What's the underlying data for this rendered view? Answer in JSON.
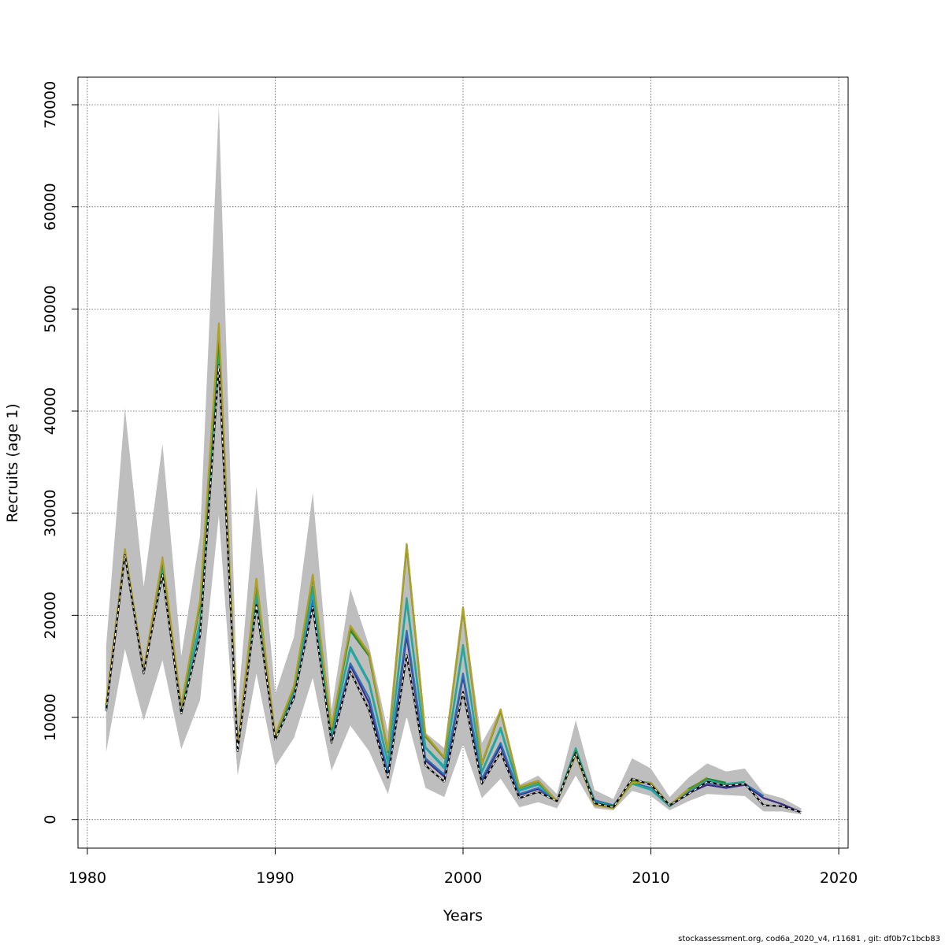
{
  "chart_data": {
    "type": "line",
    "title": "",
    "xlabel": "Years",
    "ylabel": "Recruits (age 1)",
    "xlim": [
      1979.5,
      2020.5
    ],
    "ylim": [
      -2800,
      72700
    ],
    "x_ticks": [
      1980,
      1990,
      2000,
      2010,
      2020
    ],
    "y_ticks": [
      0,
      10000,
      20000,
      30000,
      40000,
      50000,
      60000,
      70000
    ],
    "grid": true,
    "legend": "none",
    "band": {
      "x": [
        1981,
        1982,
        1983,
        1984,
        1985,
        1986,
        1987,
        1988,
        1989,
        1990,
        1991,
        1992,
        1993,
        1994,
        1995,
        1996,
        1997,
        1998,
        1999,
        2000,
        2001,
        2002,
        2003,
        2004,
        2005,
        2006,
        2007,
        2008,
        2009,
        2010,
        2011,
        2012,
        2013,
        2014,
        2015,
        2016,
        2017,
        2018
      ],
      "upper": [
        17000,
        40300,
        22800,
        36800,
        16000,
        27800,
        69800,
        10800,
        32600,
        12300,
        17900,
        32000,
        10800,
        22600,
        17000,
        8600,
        26900,
        8500,
        7000,
        20900,
        7500,
        10800,
        3400,
        4300,
        2500,
        9700,
        2900,
        2000,
        6000,
        5000,
        2200,
        4100,
        5500,
        4700,
        5000,
        2600,
        2100,
        1100
      ],
      "lower": [
        6600,
        16700,
        9700,
        15600,
        6900,
        11700,
        29800,
        4300,
        14300,
        5200,
        8000,
        13900,
        4800,
        9200,
        6700,
        2500,
        10100,
        3100,
        2200,
        7400,
        2100,
        4000,
        1200,
        1700,
        1100,
        4300,
        1100,
        900,
        2800,
        2300,
        900,
        1800,
        2500,
        2400,
        2300,
        800,
        800,
        500
      ]
    },
    "series": [
      {
        "color": "#000000",
        "dashed_overlay": true,
        "x": [
          1981,
          1982,
          1983,
          1984,
          1985,
          1986,
          1987,
          1988,
          1989,
          1990,
          1991,
          1992,
          1993,
          1994,
          1995,
          1996,
          1997,
          1998,
          1999,
          2000,
          2001,
          2002,
          2003,
          2004,
          2005,
          2006,
          2007,
          2008,
          2009,
          2010,
          2011,
          2012,
          2013,
          2014,
          2015,
          2016,
          2017,
          2018
        ],
        "values": [
          10600,
          25900,
          14300,
          24000,
          10400,
          18000,
          44500,
          6700,
          21000,
          7800,
          11900,
          20800,
          7500,
          14500,
          10700,
          4100,
          16100,
          5300,
          3700,
          12500,
          3500,
          6600,
          2100,
          2700,
          1800,
          6500,
          1600,
          1200,
          4000,
          3400,
          1400,
          2500,
          3700,
          3300,
          3500,
          1400,
          1300,
          700
        ]
      },
      {
        "color": "#3b2a85",
        "x": [
          1981,
          1982,
          1983,
          1984,
          1985,
          1986,
          1987,
          1988,
          1989,
          1990,
          1991,
          1992,
          1993,
          1994,
          1995,
          1996,
          1997,
          1998,
          1999,
          2000,
          2001,
          2002,
          2003,
          2004,
          2005,
          2006,
          2007,
          2008,
          2009,
          2010,
          2011,
          2012,
          2013,
          2014,
          2015,
          2016,
          2017,
          2018
        ],
        "values": [
          10700,
          26000,
          14400,
          24100,
          10500,
          18300,
          45000,
          6800,
          21300,
          7900,
          12000,
          21200,
          7700,
          15100,
          11400,
          4500,
          18000,
          5800,
          4200,
          14000,
          3800,
          7200,
          2400,
          3000,
          1800,
          6700,
          1800,
          1300,
          3700,
          3000,
          1300,
          2600,
          3400,
          3100,
          3400,
          2100,
          1500,
          700
        ]
      },
      {
        "color": "#2d6fb5",
        "x": [
          1981,
          1982,
          1983,
          1984,
          1985,
          1986,
          1987,
          1988,
          1989,
          1990,
          1991,
          1992,
          1993,
          1994,
          1995,
          1996,
          1997,
          1998,
          1999,
          2000,
          2001,
          2002,
          2003,
          2004,
          2005,
          2006,
          2007,
          2008,
          2009,
          2010,
          2011,
          2012,
          2013,
          2014,
          2015,
          2016
        ],
        "values": [
          10800,
          26100,
          14400,
          24200,
          10400,
          18600,
          45400,
          6800,
          21500,
          8000,
          12200,
          21500,
          7800,
          15300,
          11900,
          4700,
          18500,
          6000,
          4400,
          14300,
          4000,
          7500,
          2500,
          3100,
          1800,
          6800,
          1900,
          1400,
          3600,
          3100,
          1300,
          2800,
          3600,
          3300,
          3500,
          2300
        ]
      },
      {
        "color": "#22a7c4",
        "x": [
          1981,
          1982,
          1983,
          1984,
          1985,
          1986,
          1987,
          1988,
          1989,
          1990,
          1991,
          1992,
          1993,
          1994,
          1995,
          1996,
          1997,
          1998,
          1999,
          2000,
          2001,
          2002,
          2003,
          2004,
          2005,
          2006,
          2007,
          2008,
          2009,
          2010,
          2011,
          2012,
          2013,
          2014
        ],
        "values": [
          10900,
          26100,
          14500,
          24400,
          10600,
          19000,
          46000,
          6900,
          22000,
          8000,
          12600,
          22200,
          8300,
          16700,
          13300,
          5500,
          21300,
          7000,
          5000,
          16800,
          4600,
          8800,
          2800,
          3400,
          1800,
          7000,
          1700,
          1300,
          3500,
          2900,
          1300,
          2800,
          3800,
          3500
        ]
      },
      {
        "color": "#2aa58f",
        "x": [
          1981,
          1982,
          1983,
          1984,
          1985,
          1986,
          1987,
          1988,
          1989,
          1990,
          1991,
          1992,
          1993,
          1994,
          1995,
          1996,
          1997,
          1998,
          1999,
          2000,
          2001,
          2002,
          2003,
          2004,
          2005,
          2006,
          2007,
          2008,
          2009,
          2010,
          2011,
          2012,
          2013,
          2014,
          2015
        ],
        "values": [
          11000,
          26200,
          14500,
          24600,
          10700,
          19500,
          46500,
          7000,
          22400,
          8100,
          12700,
          22800,
          8400,
          16900,
          13500,
          5700,
          21700,
          7100,
          5200,
          17100,
          4700,
          9000,
          2900,
          3500,
          1800,
          6900,
          1700,
          1300,
          3500,
          3000,
          1300,
          2900,
          3700,
          3500,
          3700
        ]
      },
      {
        "color": "#1a8a3a",
        "x": [
          1981,
          1982,
          1983,
          1984,
          1985,
          1986,
          1987,
          1988,
          1989,
          1990,
          1991,
          1992,
          1993,
          1994,
          1995,
          1996,
          1997,
          1998,
          1999,
          2000,
          2001,
          2002,
          2003,
          2004,
          2005,
          2006,
          2007,
          2008,
          2009,
          2010,
          2011,
          2012,
          2013,
          2014
        ],
        "values": [
          11200,
          26300,
          14500,
          25300,
          11000,
          21000,
          47300,
          7100,
          23500,
          8100,
          12900,
          23900,
          8800,
          18500,
          16000,
          6600,
          26900,
          8200,
          6100,
          20700,
          5500,
          10700,
          3200,
          3800,
          1800,
          6700,
          1600,
          1300,
          3700,
          3600,
          1400,
          3000,
          4000,
          3600
        ]
      },
      {
        "color": "#6f8f1a",
        "x": [
          1981,
          1982,
          1983,
          1984,
          1985,
          1986,
          1987,
          1988,
          1989,
          1990,
          1991,
          1992,
          1993,
          1994,
          1995,
          1996,
          1997,
          1998,
          1999,
          2000,
          2001,
          2002,
          2003,
          2004,
          2005,
          2006,
          2007,
          2008,
          2009,
          2010,
          2011,
          2012,
          2013
        ],
        "values": [
          11300,
          26400,
          14600,
          25500,
          11100,
          21200,
          48300,
          7200,
          23300,
          8200,
          13000,
          23700,
          9000,
          18800,
          16100,
          6700,
          26700,
          8100,
          6000,
          20500,
          5400,
          10600,
          3100,
          3700,
          1800,
          6400,
          1500,
          1200,
          3800,
          3500,
          1400,
          2900,
          4100
        ]
      },
      {
        "color": "#b0a02a",
        "x": [
          1981,
          1982,
          1983,
          1984,
          1985,
          1986,
          1987,
          1988,
          1989,
          1990,
          1991,
          1992,
          1993,
          1994,
          1995,
          1996,
          1997,
          1998,
          1999,
          2000,
          2001,
          2002,
          2003,
          2004,
          2005,
          2006,
          2007,
          2008,
          2009,
          2010,
          2011,
          2012
        ],
        "values": [
          11400,
          26500,
          14700,
          25700,
          11200,
          21500,
          48600,
          7300,
          23600,
          8300,
          13100,
          24000,
          9100,
          19000,
          16300,
          6800,
          27000,
          8300,
          6100,
          20800,
          5500,
          10800,
          3200,
          3800,
          1800,
          6300,
          1400,
          1100,
          3600,
          3600,
          1400,
          3000
        ]
      }
    ]
  },
  "footer": {
    "text": "stockassessment.org, cod6a_2020_v4, r11681 , git: df0b7c1bcb83"
  }
}
